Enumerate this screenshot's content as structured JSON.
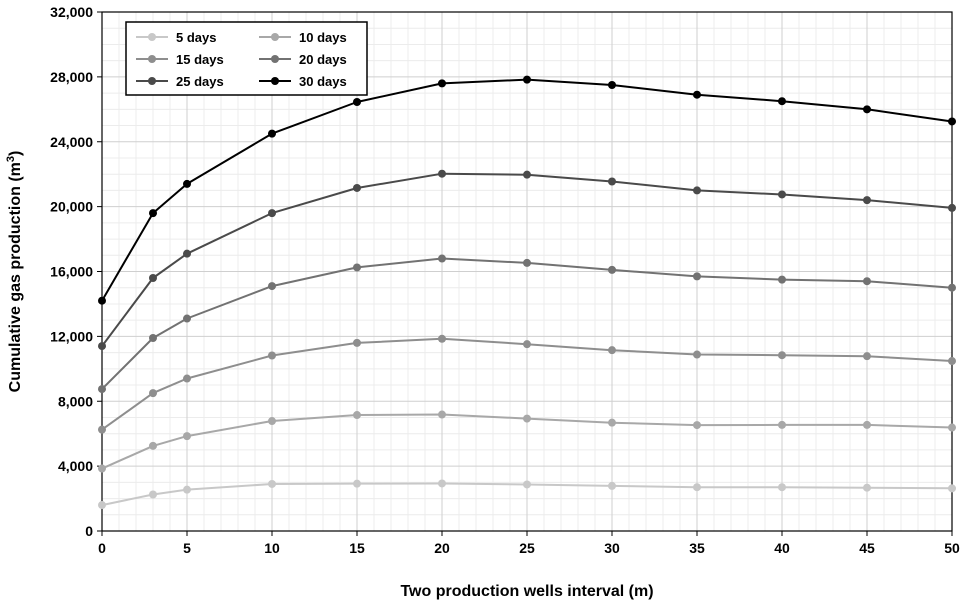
{
  "chart_data": {
    "type": "line",
    "xlabel": "Two production wells interval (m)",
    "ylabel_main": "Cumulative gas production (m",
    "ylabel_sup": "3",
    "ylabel_close": ")",
    "xlim": [
      0,
      50
    ],
    "ylim": [
      0,
      32000
    ],
    "x": [
      0,
      3,
      5,
      10,
      15,
      20,
      25,
      30,
      35,
      40,
      45,
      50
    ],
    "x_ticks": [
      0,
      5,
      10,
      15,
      20,
      25,
      30,
      35,
      40,
      45,
      50
    ],
    "y_ticks": [
      0,
      4000,
      8000,
      12000,
      16000,
      20000,
      24000,
      28000,
      32000
    ],
    "y_tick_labels": [
      "0",
      "4,000",
      "8,000",
      "12,000",
      "16,000",
      "20,000",
      "24,000",
      "28,000",
      "32,000"
    ],
    "grid": true,
    "legend_position": "top-left",
    "series": [
      {
        "name": "5 days",
        "color": "#c8c8c8",
        "values": [
          1600,
          2250,
          2550,
          2900,
          2920,
          2930,
          2870,
          2780,
          2700,
          2700,
          2670,
          2630
        ]
      },
      {
        "name": "10 days",
        "color": "#a8a8a8",
        "values": [
          3850,
          5250,
          5850,
          6780,
          7150,
          7180,
          6930,
          6680,
          6530,
          6540,
          6540,
          6380
        ]
      },
      {
        "name": "15 days",
        "color": "#8e8e8e",
        "values": [
          6250,
          8500,
          9400,
          10820,
          11600,
          11850,
          11520,
          11150,
          10880,
          10840,
          10780,
          10480
        ]
      },
      {
        "name": "20 days",
        "color": "#727272",
        "values": [
          8750,
          11900,
          13100,
          15100,
          16250,
          16800,
          16530,
          16100,
          15700,
          15500,
          15400,
          15000
        ]
      },
      {
        "name": "25 days",
        "color": "#4a4a4a",
        "values": [
          11400,
          15600,
          17100,
          19600,
          21150,
          22030,
          21970,
          21550,
          21000,
          20750,
          20400,
          19920
        ]
      },
      {
        "name": "30 days",
        "color": "#000000",
        "values": [
          14200,
          19600,
          21400,
          24500,
          26450,
          27600,
          27830,
          27500,
          26900,
          26500,
          26000,
          25250
        ]
      }
    ]
  }
}
